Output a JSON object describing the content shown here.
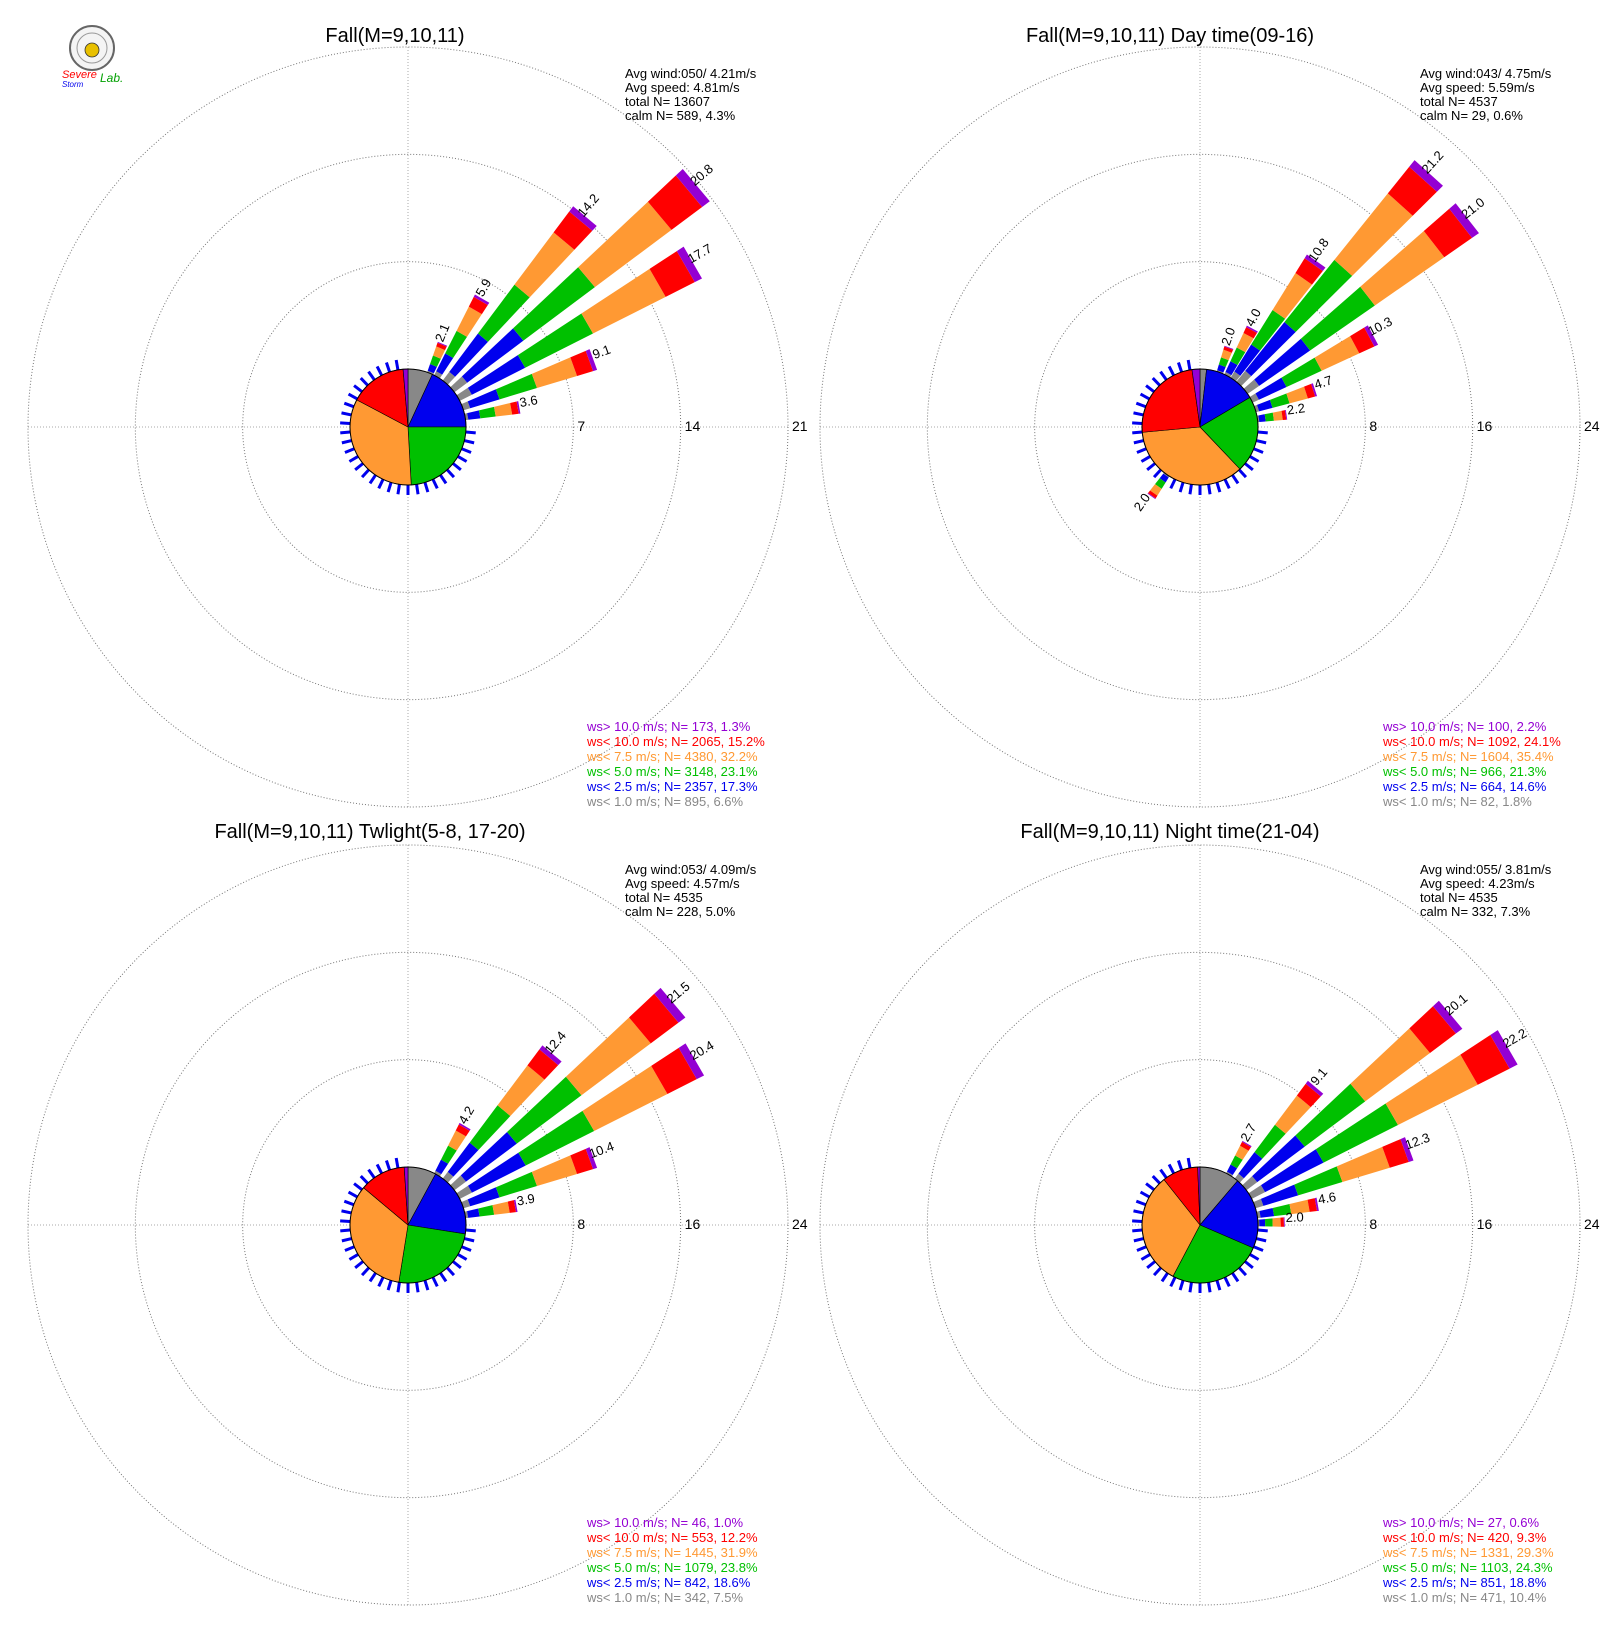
{
  "logo": {
    "line1": "Severe",
    "line2": "Storm",
    "line3": "Lab."
  },
  "colors": {
    "gt10": "#9400d3",
    "lt10": "#ff0000",
    "lt75": "#ff9933",
    "lt5": "#00c000",
    "lt25": "#0000ee",
    "lt1": "#888888"
  },
  "chart_data": [
    {
      "type": "wind-rose",
      "title": "Fall(M=9,10,11)",
      "rings": [
        7,
        14,
        21
      ],
      "ring_labels": [
        "7",
        "14",
        "21"
      ],
      "stats": [
        "Avg wind:050/ 4.21m/s",
        "Avg speed: 4.81m/s",
        "total N=       13607",
        "calm N=    589,   4.3%"
      ],
      "legend": [
        {
          "key": "gt10",
          "text": "ws> 10.0 m/s; N=   173,  1.3%"
        },
        {
          "key": "lt10",
          "text": "ws< 10.0 m/s; N=  2065, 15.2%"
        },
        {
          "key": "lt75",
          "text": "ws<  7.5 m/s; N=  4380, 32.2%"
        },
        {
          "key": "lt5",
          "text": "ws<  5.0 m/s; N=  3148, 23.1%"
        },
        {
          "key": "lt25",
          "text": "ws<  2.5 m/s; N=  2357, 17.3%"
        },
        {
          "key": "lt1",
          "text": "ws<  1.0 m/s; N=   895,  6.6%"
        }
      ],
      "pie": [
        6.6,
        17.3,
        23.1,
        32.2,
        15.2,
        1.3
      ],
      "petals": [
        {
          "dir": 22.5,
          "total": 2.1,
          "label": "2.1"
        },
        {
          "dir": 30,
          "total": 5.9,
          "label": "5.9"
        },
        {
          "dir": 40,
          "total": 14.2,
          "label": "14.2"
        },
        {
          "dir": 50,
          "total": 20.8,
          "label": "20.8"
        },
        {
          "dir": 60,
          "total": 17.7,
          "label": "17.7"
        },
        {
          "dir": 70,
          "total": 9.1,
          "label": "9.1"
        },
        {
          "dir": 80,
          "total": 3.6,
          "label": "3.6"
        }
      ]
    },
    {
      "type": "wind-rose",
      "title": "Fall(M=9,10,11) Day time(09-16)",
      "rings": [
        8,
        16,
        24
      ],
      "ring_labels": [
        "8",
        "16",
        "24"
      ],
      "stats": [
        "Avg wind:043/ 4.75m/s",
        "Avg speed: 5.59m/s",
        "total N=        4537",
        "calm N=     29,   0.6%"
      ],
      "legend": [
        {
          "key": "gt10",
          "text": "ws> 10.0 m/s; N=   100,  2.2%"
        },
        {
          "key": "lt10",
          "text": "ws< 10.0 m/s; N=  1092, 24.1%"
        },
        {
          "key": "lt75",
          "text": "ws<  7.5 m/s; N=  1604, 35.4%"
        },
        {
          "key": "lt5",
          "text": "ws<  5.0 m/s; N=   966, 21.3%"
        },
        {
          "key": "lt25",
          "text": "ws<  2.5 m/s; N=   664, 14.6%"
        },
        {
          "key": "lt1",
          "text": "ws<  1.0 m/s; N=    82,  1.8%"
        }
      ],
      "pie": [
        1.8,
        14.6,
        21.3,
        35.4,
        24.1,
        2.2
      ],
      "petals": [
        {
          "dir": 20,
          "total": 2.0,
          "label": "2.0"
        },
        {
          "dir": 28,
          "total": 4.0,
          "label": "4.0"
        },
        {
          "dir": 35,
          "total": 10.8,
          "label": "10.8"
        },
        {
          "dir": 42,
          "total": 21.2,
          "label": "21.2"
        },
        {
          "dir": 52,
          "total": 21.0,
          "label": "21.0"
        },
        {
          "dir": 62,
          "total": 10.3,
          "label": "10.3"
        },
        {
          "dir": 72,
          "total": 4.7,
          "label": "4.7"
        },
        {
          "dir": 82,
          "total": 2.2,
          "label": "2.2"
        },
        {
          "dir": 215,
          "total": 2.0,
          "label": "2.0"
        }
      ]
    },
    {
      "type": "wind-rose",
      "title": "Fall(M=9,10,11) Twlight(5-8, 17-20)",
      "rings": [
        8,
        16,
        24
      ],
      "ring_labels": [
        "8",
        "16",
        "24"
      ],
      "stats": [
        "Avg wind:053/ 4.09m/s",
        "Avg speed: 4.57m/s",
        "total N=        4535",
        "calm N=    228,   5.0%"
      ],
      "legend": [
        {
          "key": "gt10",
          "text": "ws> 10.0 m/s; N=    46,  1.0%"
        },
        {
          "key": "lt10",
          "text": "ws< 10.0 m/s; N=   553, 12.2%"
        },
        {
          "key": "lt75",
          "text": "ws<  7.5 m/s; N=  1445, 31.9%"
        },
        {
          "key": "lt5",
          "text": "ws<  5.0 m/s; N=  1079, 23.8%"
        },
        {
          "key": "lt25",
          "text": "ws<  2.5 m/s; N=   842, 18.6%"
        },
        {
          "key": "lt1",
          "text": "ws<  1.0 m/s; N=   342,  7.5%"
        }
      ],
      "pie": [
        7.5,
        18.6,
        23.8,
        31.9,
        12.2,
        1.0
      ],
      "petals": [
        {
          "dir": 30,
          "total": 4.2,
          "label": "4.2"
        },
        {
          "dir": 40,
          "total": 12.4,
          "label": "12.4"
        },
        {
          "dir": 50,
          "total": 21.5,
          "label": "21.5"
        },
        {
          "dir": 60,
          "total": 20.4,
          "label": "20.4"
        },
        {
          "dir": 70,
          "total": 10.4,
          "label": "10.4"
        },
        {
          "dir": 80,
          "total": 3.9,
          "label": "3.9"
        }
      ]
    },
    {
      "type": "wind-rose",
      "title": "Fall(M=9,10,11) Night time(21-04)",
      "rings": [
        8,
        16,
        24
      ],
      "ring_labels": [
        "8",
        "16",
        "24"
      ],
      "stats": [
        "Avg wind:055/ 3.81m/s",
        "Avg speed: 4.23m/s",
        "total N=        4535",
        "calm N=    332,   7.3%"
      ],
      "legend": [
        {
          "key": "gt10",
          "text": "ws> 10.0 m/s; N=    27,  0.6%"
        },
        {
          "key": "lt10",
          "text": "ws< 10.0 m/s; N=   420,  9.3%"
        },
        {
          "key": "lt75",
          "text": "ws<  7.5 m/s; N=  1331, 29.3%"
        },
        {
          "key": "lt5",
          "text": "ws<  5.0 m/s; N=  1103, 24.3%"
        },
        {
          "key": "lt25",
          "text": "ws<  2.5 m/s; N=   851, 18.8%"
        },
        {
          "key": "lt1",
          "text": "ws<  1.0 m/s; N=   471, 10.4%"
        }
      ],
      "pie": [
        10.4,
        18.8,
        24.3,
        29.3,
        9.3,
        0.6
      ],
      "petals": [
        {
          "dir": 30,
          "total": 2.7,
          "label": "2.7"
        },
        {
          "dir": 40,
          "total": 9.1,
          "label": "9.1"
        },
        {
          "dir": 50,
          "total": 20.1,
          "label": "20.1"
        },
        {
          "dir": 60,
          "total": 22.2,
          "label": "22.2"
        },
        {
          "dir": 70,
          "total": 12.3,
          "label": "12.3"
        },
        {
          "dir": 80,
          "total": 4.6,
          "label": "4.6"
        },
        {
          "dir": 88,
          "total": 2.0,
          "label": "2.0"
        }
      ]
    }
  ]
}
